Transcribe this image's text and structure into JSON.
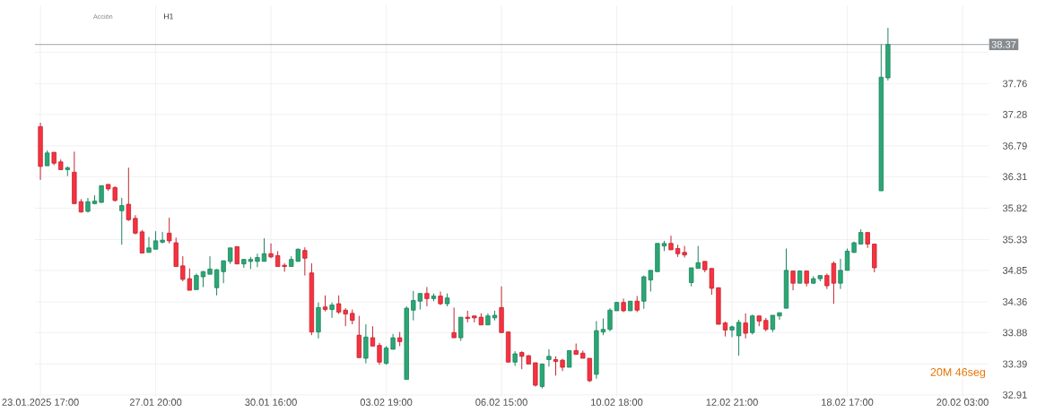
{
  "chart_data": {
    "type": "candlestick",
    "annotations": [
      "Acción",
      "H1",
      "20M 46seg"
    ],
    "categories": [
      "23.01.2025 17:00",
      null,
      null,
      null,
      null,
      null,
      null,
      null,
      null,
      null,
      null,
      null,
      null,
      null,
      null,
      null,
      null,
      "27.01 20:00",
      null,
      null,
      null,
      null,
      null,
      null,
      null,
      null,
      null,
      null,
      null,
      null,
      null,
      null,
      null,
      null,
      "30.01 16:00",
      null,
      null,
      null,
      null,
      null,
      null,
      null,
      null,
      null,
      null,
      null,
      null,
      null,
      null,
      null,
      null,
      "03.02 19:00",
      null,
      null,
      null,
      null,
      null,
      null,
      null,
      null,
      null,
      null,
      null,
      null,
      null,
      null,
      null,
      null,
      "06.02 15:00",
      null,
      null,
      null,
      null,
      null,
      null,
      null,
      null,
      null,
      null,
      null,
      null,
      null,
      null,
      null,
      null,
      "10.02 18:00",
      null,
      null,
      null,
      null,
      null,
      null,
      null,
      null,
      null,
      null,
      null,
      null,
      null,
      null,
      null,
      null,
      "12.02 21:00",
      null,
      null,
      null,
      null,
      null,
      null,
      null,
      null,
      null,
      null,
      null,
      null,
      null,
      null,
      null,
      null,
      "18.02 17:00",
      null,
      null,
      null,
      null,
      null,
      null,
      null,
      null,
      null,
      null,
      null,
      null,
      null,
      null,
      null,
      null,
      "20.02 03:00"
    ],
    "ohlc": [
      [
        37.09,
        37.15,
        36.26,
        36.47
      ],
      [
        36.48,
        36.72,
        36.48,
        36.68
      ],
      [
        36.69,
        36.69,
        36.49,
        36.52
      ],
      [
        36.54,
        36.58,
        36.42,
        36.42
      ],
      [
        36.42,
        36.47,
        36.32,
        36.45
      ],
      [
        36.38,
        36.7,
        35.89,
        35.89
      ],
      [
        35.92,
        35.96,
        35.75,
        35.76
      ],
      [
        35.77,
        35.98,
        35.75,
        35.92
      ],
      [
        35.89,
        36.02,
        35.88,
        35.93
      ],
      [
        35.91,
        36.17,
        35.9,
        36.17
      ],
      [
        36.19,
        36.19,
        36.09,
        36.12
      ],
      [
        36.14,
        36.16,
        35.92,
        35.94
      ],
      [
        35.78,
        35.98,
        35.25,
        35.86
      ],
      [
        35.88,
        36.45,
        35.62,
        35.64
      ],
      [
        35.66,
        35.71,
        35.41,
        35.43
      ],
      [
        35.45,
        35.48,
        35.12,
        35.12
      ],
      [
        35.13,
        35.37,
        35.13,
        35.2
      ],
      [
        35.18,
        35.46,
        35.18,
        35.31
      ],
      [
        35.29,
        35.45,
        35.27,
        35.32
      ],
      [
        35.43,
        35.67,
        35.27,
        35.31
      ],
      [
        35.28,
        35.36,
        34.91,
        34.91
      ],
      [
        34.92,
        35.07,
        34.68,
        34.71
      ],
      [
        34.72,
        34.88,
        34.54,
        34.54
      ],
      [
        34.55,
        34.8,
        34.55,
        34.77
      ],
      [
        34.75,
        34.84,
        34.59,
        34.83
      ],
      [
        34.79,
        35.07,
        34.79,
        34.87
      ],
      [
        34.58,
        34.87,
        34.46,
        34.86
      ],
      [
        34.83,
        35.0,
        34.65,
        35.0
      ],
      [
        34.99,
        35.2,
        34.95,
        35.2
      ],
      [
        35.22,
        35.22,
        34.95,
        34.95
      ],
      [
        34.95,
        35.03,
        34.89,
        35.02
      ],
      [
        34.99,
        35.06,
        34.87,
        35.02
      ],
      [
        34.99,
        35.11,
        34.9,
        35.05
      ],
      [
        34.99,
        35.35,
        34.99,
        35.11
      ],
      [
        35.11,
        35.27,
        35.04,
        35.06
      ],
      [
        35.08,
        35.15,
        34.91,
        34.91
      ],
      [
        34.93,
        34.96,
        34.83,
        34.91
      ],
      [
        34.91,
        35.07,
        34.91,
        35.02
      ],
      [
        34.99,
        35.19,
        34.99,
        35.18
      ],
      [
        35.16,
        35.21,
        34.77,
        35.04
      ],
      [
        34.81,
        34.96,
        33.84,
        33.89
      ],
      [
        33.89,
        34.35,
        33.79,
        34.27
      ],
      [
        34.28,
        34.46,
        34.21,
        34.24
      ],
      [
        34.24,
        34.35,
        34.11,
        34.31
      ],
      [
        34.33,
        34.46,
        34.17,
        34.2
      ],
      [
        34.23,
        34.26,
        33.98,
        34.17
      ],
      [
        34.18,
        34.24,
        34.01,
        34.07
      ],
      [
        33.84,
        34.14,
        33.49,
        33.49
      ],
      [
        33.48,
        34.01,
        33.4,
        33.81
      ],
      [
        33.8,
        33.98,
        33.67,
        33.67
      ],
      [
        33.68,
        33.72,
        33.38,
        33.42
      ],
      [
        33.4,
        33.67,
        33.38,
        33.64
      ],
      [
        33.62,
        33.86,
        33.62,
        33.8
      ],
      [
        33.8,
        33.89,
        33.67,
        33.74
      ],
      [
        33.15,
        34.29,
        33.15,
        34.26
      ],
      [
        34.23,
        34.53,
        34.07,
        34.38
      ],
      [
        34.37,
        34.49,
        34.24,
        34.49
      ],
      [
        34.49,
        34.59,
        34.29,
        34.41
      ],
      [
        34.41,
        34.49,
        34.37,
        34.45
      ],
      [
        34.45,
        34.52,
        34.31,
        34.33
      ],
      [
        34.33,
        34.49,
        34.29,
        34.42
      ],
      [
        33.88,
        34.27,
        33.8,
        33.8
      ],
      [
        33.8,
        34.12,
        33.75,
        34.12
      ],
      [
        34.12,
        34.22,
        34.04,
        34.1
      ],
      [
        34.14,
        34.14,
        34.04,
        34.11
      ],
      [
        34.12,
        34.18,
        34.0,
        34.0
      ],
      [
        34.0,
        34.18,
        34.0,
        34.14
      ],
      [
        34.11,
        34.22,
        34.07,
        34.15
      ],
      [
        34.27,
        34.6,
        33.88,
        33.88
      ],
      [
        33.89,
        33.89,
        33.42,
        33.42
      ],
      [
        33.42,
        33.59,
        33.36,
        33.55
      ],
      [
        33.57,
        33.59,
        33.31,
        33.51
      ],
      [
        33.52,
        33.53,
        33.39,
        33.39
      ],
      [
        33.41,
        33.41,
        33.04,
        33.06
      ],
      [
        33.04,
        33.4,
        33.01,
        33.39
      ],
      [
        33.46,
        33.62,
        33.35,
        33.51
      ],
      [
        33.46,
        33.51,
        33.21,
        33.43
      ],
      [
        33.45,
        33.47,
        33.28,
        33.34
      ],
      [
        33.34,
        33.6,
        33.34,
        33.6
      ],
      [
        33.6,
        33.71,
        33.54,
        33.54
      ],
      [
        33.56,
        33.6,
        33.48,
        33.48
      ],
      [
        33.48,
        33.48,
        33.11,
        33.13
      ],
      [
        33.23,
        34.06,
        33.16,
        33.91
      ],
      [
        33.89,
        34.1,
        33.84,
        33.93
      ],
      [
        33.93,
        34.26,
        33.9,
        34.23
      ],
      [
        34.22,
        34.36,
        34.22,
        34.35
      ],
      [
        34.35,
        34.41,
        34.2,
        34.22
      ],
      [
        34.22,
        34.37,
        34.22,
        34.37
      ],
      [
        34.37,
        34.45,
        34.2,
        34.23
      ],
      [
        34.37,
        34.77,
        34.25,
        34.75
      ],
      [
        34.7,
        34.85,
        34.52,
        34.85
      ],
      [
        34.83,
        35.27,
        34.83,
        35.27
      ],
      [
        35.23,
        35.31,
        35.15,
        35.27
      ],
      [
        35.27,
        35.39,
        35.17,
        35.17
      ],
      [
        35.19,
        35.25,
        35.06,
        35.11
      ],
      [
        35.13,
        35.23,
        35.05,
        35.09
      ],
      [
        34.66,
        34.89,
        34.6,
        34.89
      ],
      [
        34.88,
        35.23,
        34.88,
        34.97
      ],
      [
        34.99,
        34.99,
        34.82,
        34.86
      ],
      [
        34.88,
        34.88,
        34.47,
        34.57
      ],
      [
        34.58,
        34.58,
        34.01,
        34.01
      ],
      [
        34.03,
        34.05,
        33.82,
        33.92
      ],
      [
        33.92,
        33.99,
        33.81,
        33.97
      ],
      [
        33.83,
        34.08,
        33.52,
        34.04
      ],
      [
        34.03,
        34.18,
        33.79,
        33.87
      ],
      [
        33.88,
        34.16,
        33.85,
        34.14
      ],
      [
        34.14,
        34.14,
        33.98,
        34.06
      ],
      [
        34.07,
        34.11,
        33.9,
        33.93
      ],
      [
        33.93,
        34.15,
        33.89,
        34.15
      ],
      [
        34.14,
        34.19,
        34.08,
        34.19
      ],
      [
        34.26,
        35.19,
        34.26,
        34.85
      ],
      [
        34.84,
        34.84,
        34.54,
        34.65
      ],
      [
        34.65,
        34.85,
        34.65,
        34.84
      ],
      [
        34.84,
        34.84,
        34.6,
        34.65
      ],
      [
        34.65,
        34.76,
        34.64,
        34.72
      ],
      [
        34.72,
        34.77,
        34.68,
        34.77
      ],
      [
        34.77,
        34.8,
        34.56,
        34.61
      ],
      [
        34.96,
        34.99,
        34.33,
        34.65
      ],
      [
        34.65,
        35.03,
        34.56,
        34.85
      ],
      [
        34.85,
        35.19,
        34.85,
        35.15
      ],
      [
        35.13,
        35.3,
        35.12,
        35.28
      ],
      [
        35.26,
        35.49,
        35.26,
        35.44
      ],
      [
        35.44,
        35.44,
        35.2,
        35.26
      ],
      [
        35.26,
        35.26,
        34.82,
        34.89
      ],
      [
        36.09,
        38.37,
        36.09,
        37.86
      ],
      [
        37.85,
        38.63,
        37.81,
        38.37
      ],
      null,
      null,
      null,
      null,
      null,
      null,
      null,
      null,
      null,
      null,
      null
    ],
    "ylim": [
      32.88,
      38.98
    ],
    "yticks": [
      32.91,
      33.39,
      33.88,
      34.36,
      34.85,
      35.33,
      35.82,
      36.31,
      36.79,
      37.28,
      37.76,
      {
        "value": 38.25,
        "label": null
      }
    ],
    "ref_lines": [
      {
        "axis": "y",
        "value": 38.37,
        "label": "38.37",
        "color": "#868b8f"
      }
    ],
    "grid": true
  }
}
